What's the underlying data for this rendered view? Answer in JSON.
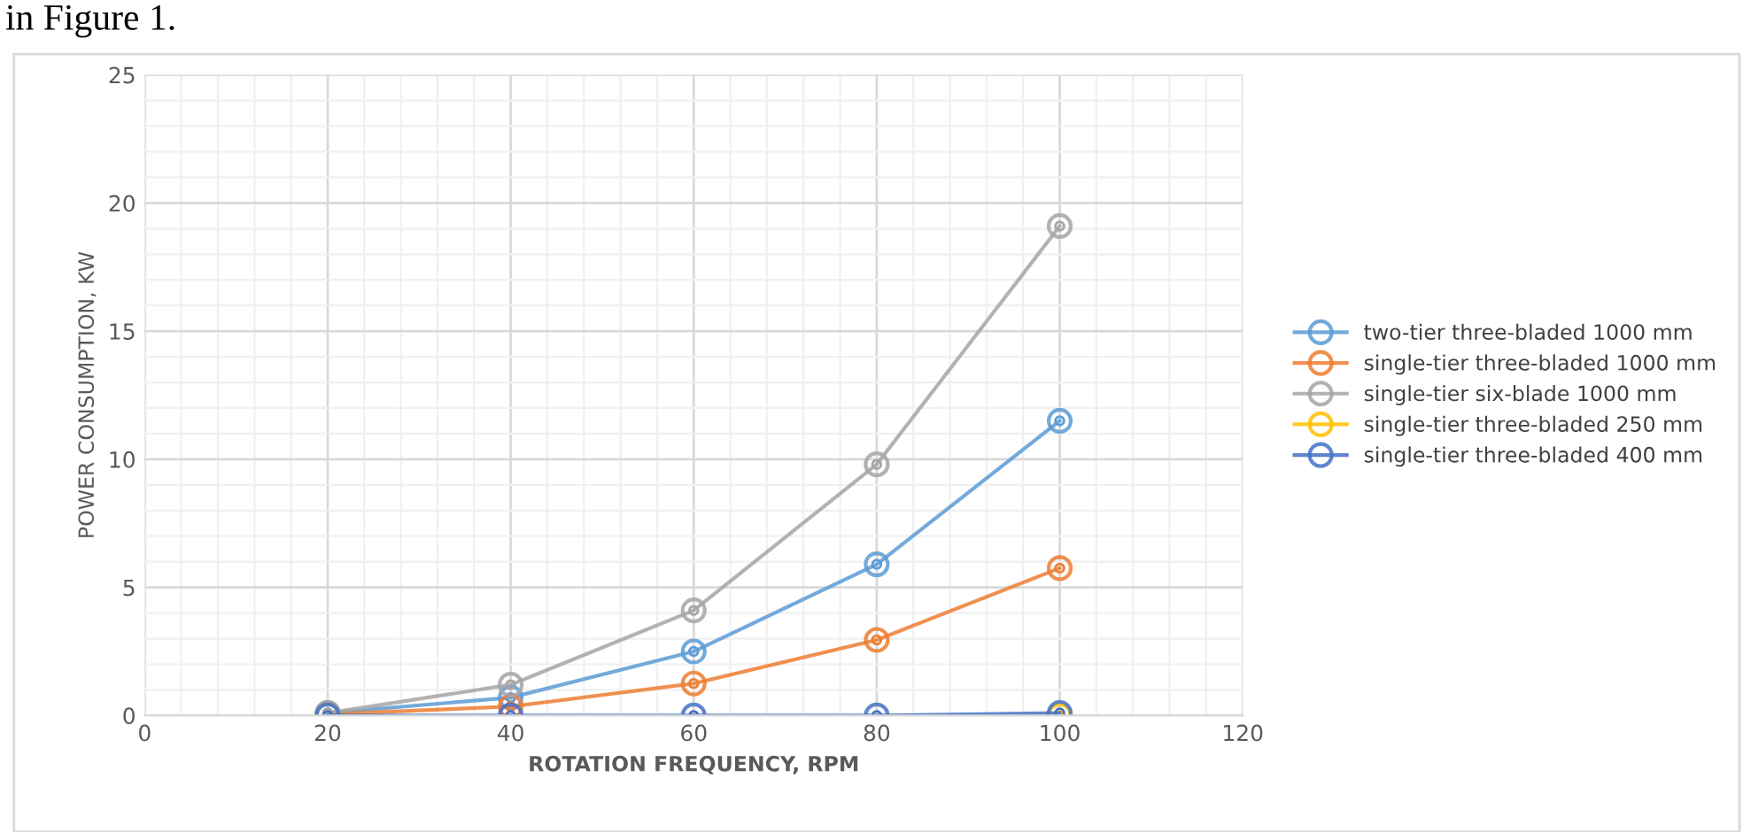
{
  "chart_data": {
    "type": "line",
    "xlabel": "ROTATION FREQUENCY, RPM",
    "ylabel": "POWER CONSUMPTION, KW",
    "annotations": [
      "in Figure 1."
    ],
    "x": [
      20,
      40,
      60,
      80,
      100
    ],
    "series": [
      {
        "name": "two-tier three-bladed 1000 mm",
        "color": "#5b9bd5",
        "values": [
          0.1,
          0.7,
          2.5,
          5.9,
          11.5
        ]
      },
      {
        "name": "single-tier three-bladed 1000 mm",
        "color": "#ed7d31",
        "values": [
          0.05,
          0.35,
          1.25,
          2.95,
          5.75
        ]
      },
      {
        "name": "single-tier six-blade 1000 mm",
        "color": "#a5a5a5",
        "values": [
          0.1,
          1.2,
          4.1,
          9.8,
          19.1
        ]
      },
      {
        "name": "single-tier three-bladed 250 mm",
        "color": "#ffc000",
        "values": [
          null,
          null,
          null,
          null,
          0
        ]
      },
      {
        "name": "single-tier three-bladed 400 mm",
        "color": "#4472c4",
        "values": [
          0,
          0,
          0,
          0,
          0.1
        ]
      }
    ],
    "xlim": [
      0,
      120
    ],
    "xticks": [
      0,
      20,
      40,
      60,
      80,
      100,
      120
    ],
    "ylim": [
      0,
      25
    ],
    "yticks": [
      0,
      5,
      10,
      15,
      20,
      25
    ],
    "grid": true,
    "legend": "right",
    "marker": "circle",
    "line_style": "solid"
  }
}
